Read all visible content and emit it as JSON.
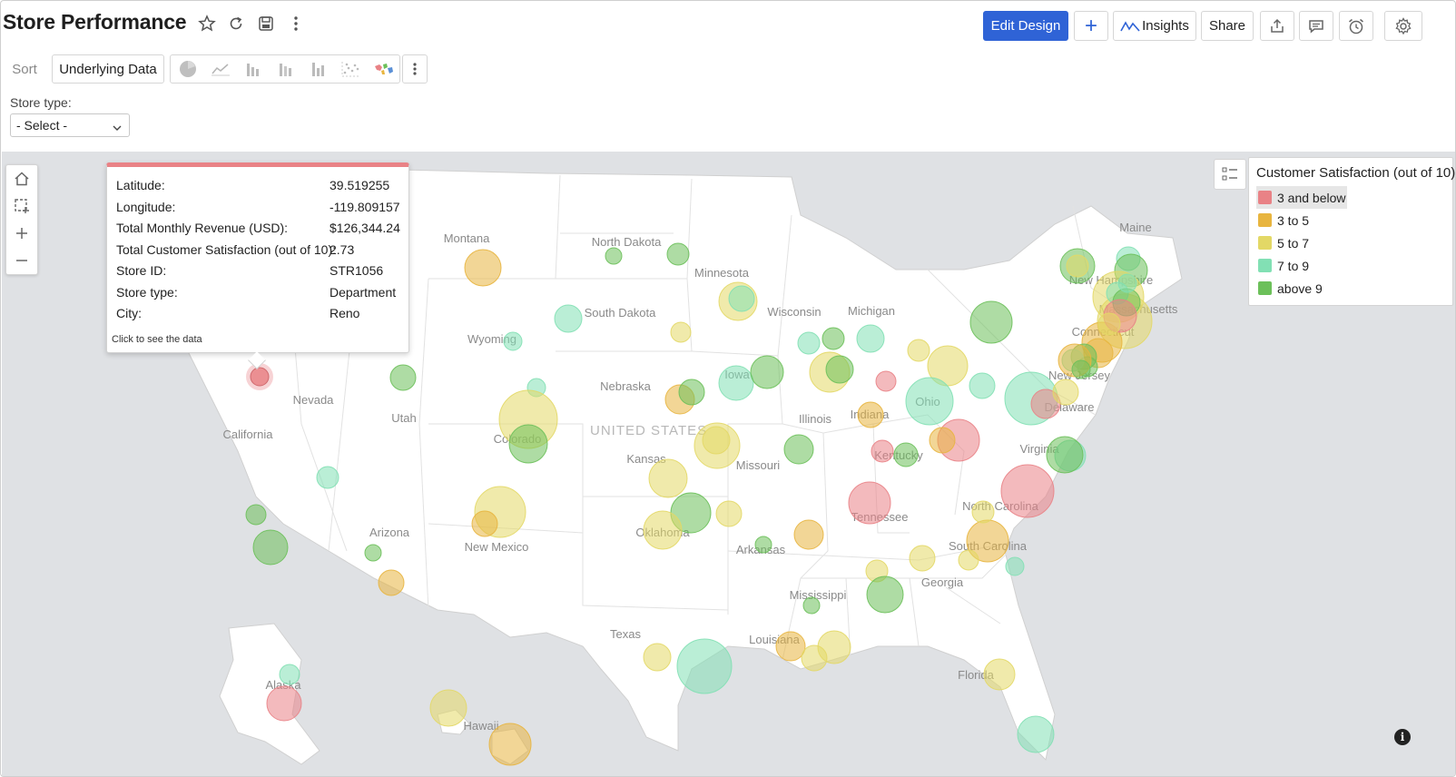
{
  "header": {
    "title": "Store Performance",
    "edit_design": "Edit Design",
    "insights": "Insights",
    "share": "Share"
  },
  "toolbar": {
    "sort": "Sort",
    "underlying_data": "Underlying Data"
  },
  "filter": {
    "label": "Store type:",
    "selected": "- Select -"
  },
  "map": {
    "country_label": "UNITED STATES",
    "state_labels": [
      "Montana",
      "North Dakota",
      "Minnesota",
      "South Dakota",
      "Wisconsin",
      "Michigan",
      "Wyoming",
      "Nebraska",
      "Iowa",
      "Nevada",
      "Utah",
      "Colorado",
      "Illinois",
      "Indiana",
      "Ohio",
      "California",
      "Kansas",
      "Missouri",
      "Kentucky",
      "Virginia",
      "Tennessee",
      "North Carolina",
      "Arizona",
      "New Mexico",
      "Oklahoma",
      "Arkansas",
      "South Carolina",
      "Georgia",
      "Mississippi",
      "Texas",
      "Louisiana",
      "Florida",
      "Alaska",
      "Hawaii",
      "Maine",
      "New Hampshire",
      "Massachusetts",
      "Connecticut",
      "New Jersey",
      "Delaware"
    ]
  },
  "legend": {
    "title": "Customer Satisfaction (out of 10)",
    "items": [
      {
        "label": "3 and below",
        "color": "#e98286",
        "selected": true
      },
      {
        "label": "3 to 5",
        "color": "#e8b53f"
      },
      {
        "label": "5 to 7",
        "color": "#e3d866"
      },
      {
        "label": "7 to 9",
        "color": "#82e0b4"
      },
      {
        "label": "above 9",
        "color": "#6cc05a"
      }
    ]
  },
  "tooltip": {
    "rows": [
      {
        "key": "Latitude:",
        "value": "39.519255"
      },
      {
        "key": "Longitude:",
        "value": "-119.809157"
      },
      {
        "key": "Total Monthly Revenue (USD):",
        "value": "$126,344.24"
      },
      {
        "key": "Total Customer Satisfaction (out of 10):",
        "value": "2.73"
      },
      {
        "key": "Store ID:",
        "value": "STR1056"
      },
      {
        "key": "Store type:",
        "value": "Department"
      },
      {
        "key": "City:",
        "value": "Reno"
      }
    ],
    "hint": "Click to see the data"
  },
  "icons": [
    "star-icon",
    "refresh-icon",
    "save-icon",
    "more-vertical-icon",
    "plus-icon",
    "insights-icon",
    "export-icon",
    "comment-icon",
    "alarm-icon",
    "settings-icon",
    "home-icon",
    "marquee-select-icon",
    "zoom-in-icon",
    "zoom-out-icon",
    "legend-toggle-icon",
    "info-icon"
  ]
}
